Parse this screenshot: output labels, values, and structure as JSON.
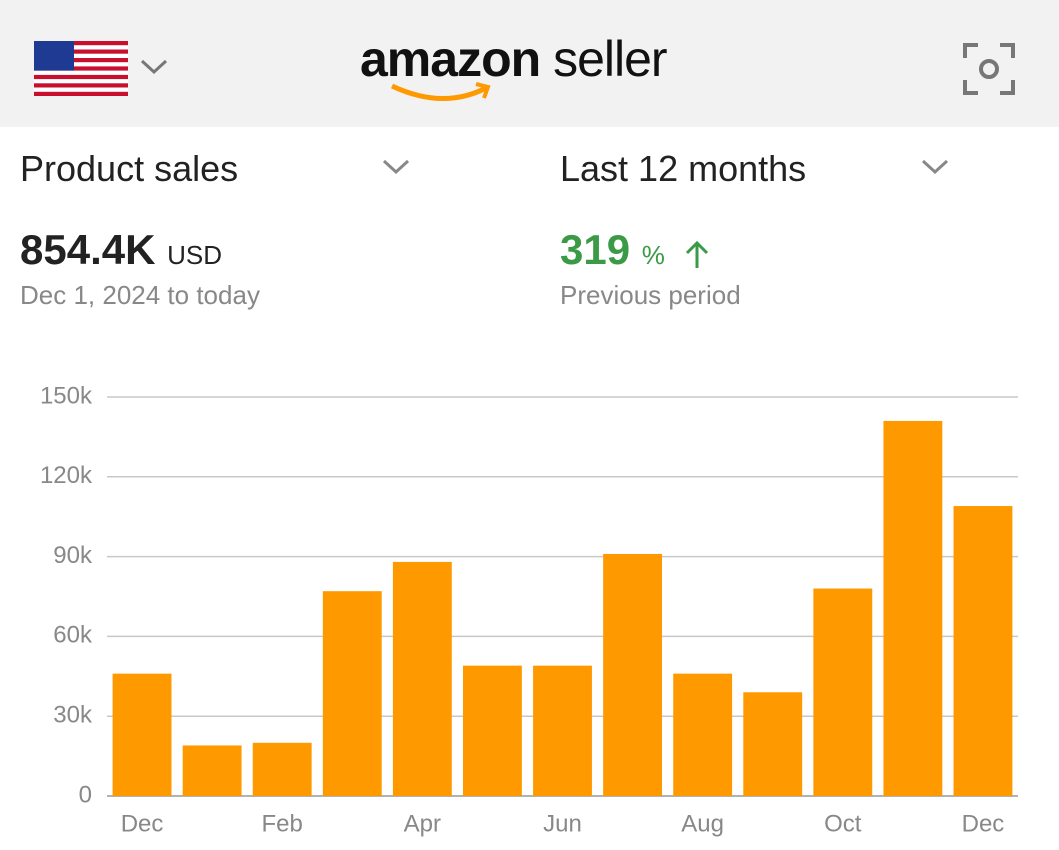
{
  "header": {
    "logo_brand": "amazon",
    "logo_product": "seller"
  },
  "controls": {
    "metric": "Product sales",
    "period": "Last 12 months"
  },
  "summary": {
    "total": "854.4K",
    "currency": "USD",
    "range": "Dec 1, 2024 to today",
    "change": "319",
    "change_unit": "%",
    "change_label": "Previous period"
  },
  "chart_data": {
    "type": "bar",
    "categories": [
      "Dec",
      null,
      "Feb",
      null,
      "Apr",
      null,
      "Jun",
      null,
      "Aug",
      null,
      "Oct",
      null,
      "Dec"
    ],
    "values": [
      46000,
      19000,
      20000,
      77000,
      88000,
      49000,
      49000,
      91000,
      46000,
      39000,
      78000,
      141000,
      109000
    ],
    "color": "#ff9900",
    "ylim": [
      0,
      150000
    ],
    "yticks": [
      0,
      {
        "value": 30000,
        "label": "30k"
      },
      {
        "value": 60000,
        "label": "60k"
      },
      {
        "value": 90000,
        "label": "90k"
      },
      {
        "value": 120000,
        "label": "120k"
      },
      {
        "value": 150000,
        "label": "150k"
      }
    ],
    "grid": true
  }
}
